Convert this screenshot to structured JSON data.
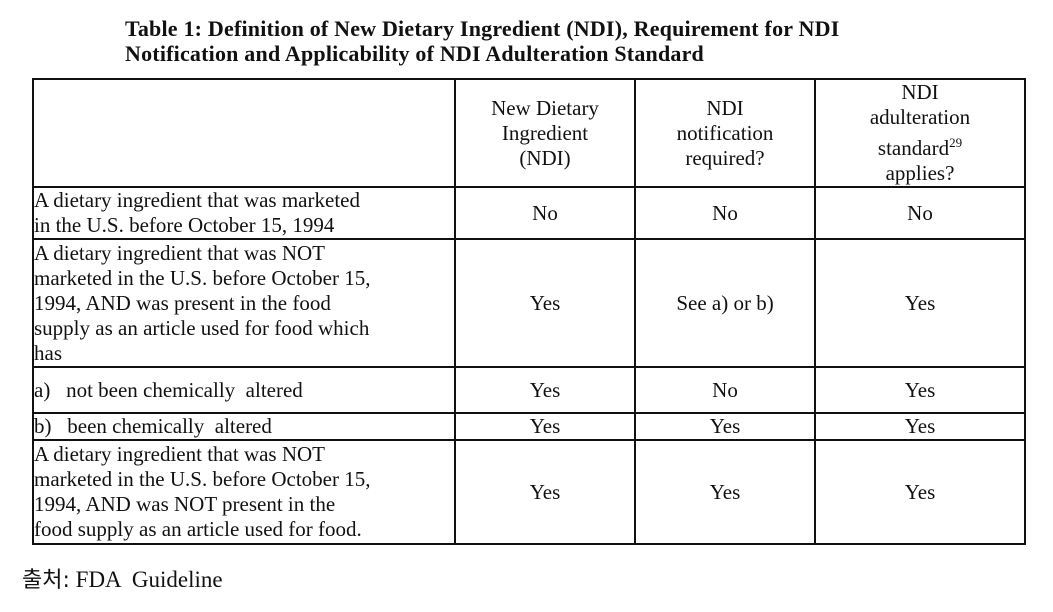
{
  "title": {
    "line1": "Table 1: Definition of New Dietary Ingredient (NDI), Requirement for NDI",
    "line2": "Notification and Applicability of NDI Adulteration Standard"
  },
  "header": {
    "col1": [
      "New Dietary",
      "Ingredient",
      "(NDI)"
    ],
    "col2": [
      "NDI",
      "notification",
      "required?"
    ],
    "col3_line1": "NDI",
    "col3_line2": "adulteration",
    "col3_line3": "standard",
    "col3_sup": "29",
    "col3_line4": "applies?"
  },
  "rows": [
    {
      "description": [
        "A dietary ingredient  that was marketed",
        "in the U.S. before October 15, 1994"
      ],
      "ndi": "No",
      "notification": "No",
      "adulteration": "No"
    },
    {
      "description": [
        "A dietary ingredient  that was NOT",
        "marketed in the U.S. before October 15,",
        "1994,  AND was present in the food",
        "supply as an article used for food which",
        "has"
      ],
      "ndi": "Yes",
      "notification": "See a) or b)",
      "adulteration": "Yes"
    },
    {
      "description": [
        "a)   not been chemically  altered"
      ],
      "ndi": "Yes",
      "notification": "No",
      "adulteration": "Yes"
    },
    {
      "description": [
        "b)   been chemically  altered"
      ],
      "ndi": "Yes",
      "notification": "Yes",
      "adulteration": "Yes"
    },
    {
      "description": [
        "A dietary ingredient  that was NOT",
        "marketed in the U.S. before October 15,",
        "1994,  AND was NOT present in the",
        "food supply  as an article used for food."
      ],
      "ndi": "Yes",
      "notification": "Yes",
      "adulteration": "Yes"
    }
  ],
  "source": {
    "label": "출처:",
    "text": "FDA  Guideline"
  }
}
